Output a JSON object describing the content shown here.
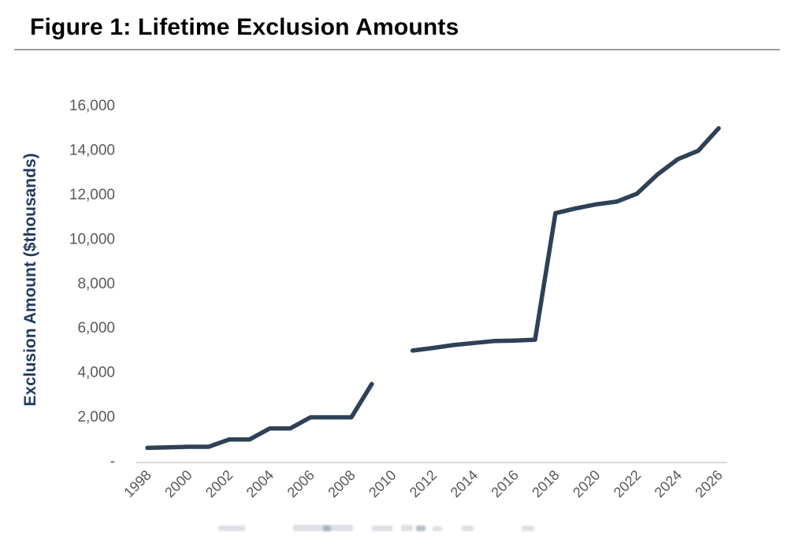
{
  "figure": {
    "title": "Figure 1: Lifetime Exclusion Amounts"
  },
  "chart_data": {
    "type": "line",
    "title": "Figure 1: Lifetime Exclusion Amounts",
    "xlabel": "",
    "ylabel": "Exclusion Amount ($thousands)",
    "ylim": [
      0,
      16000
    ],
    "grid": false,
    "legend_position": "none",
    "x": [
      1998,
      1999,
      2000,
      2001,
      2002,
      2003,
      2004,
      2005,
      2006,
      2007,
      2008,
      2009,
      2010,
      2011,
      2012,
      2013,
      2014,
      2015,
      2016,
      2017,
      2018,
      2019,
      2020,
      2021,
      2022,
      2023,
      2024,
      2025,
      2026
    ],
    "series": [
      {
        "name": "Lifetime Exclusion Amount",
        "values": [
          625,
          650,
          675,
          675,
          1000,
          1000,
          1500,
          1500,
          2000,
          2000,
          2000,
          3500,
          null,
          5000,
          5120,
          5250,
          5340,
          5430,
          5450,
          5490,
          11180,
          11400,
          11580,
          11700,
          12060,
          12920,
          13610,
          13990,
          15000
        ]
      }
    ],
    "gap_years": [
      2010
    ],
    "y_ticks": [
      {
        "label": "16,000",
        "value": 16000
      },
      {
        "label": "14,000",
        "value": 14000
      },
      {
        "label": "12,000",
        "value": 12000
      },
      {
        "label": "10,000",
        "value": 10000
      },
      {
        "label": "8,000",
        "value": 8000
      },
      {
        "label": "6,000",
        "value": 6000
      },
      {
        "label": "4,000",
        "value": 4000
      },
      {
        "label": "2,000",
        "value": 2000
      },
      {
        "label": "-",
        "value": 0
      }
    ],
    "x_tick_labels": [
      "1998",
      "2000",
      "2002",
      "2004",
      "2006",
      "2008",
      "2010",
      "2012",
      "2014",
      "2016",
      "2018",
      "2020",
      "2022",
      "2024",
      "2026"
    ],
    "colors": {
      "line": "#2e4156",
      "tick_labels": "#595959",
      "axis_line": "#d9d9d9",
      "axis_title": "#223c60",
      "figure_title": "#000000",
      "title_rule": "#9b9b9b"
    }
  }
}
